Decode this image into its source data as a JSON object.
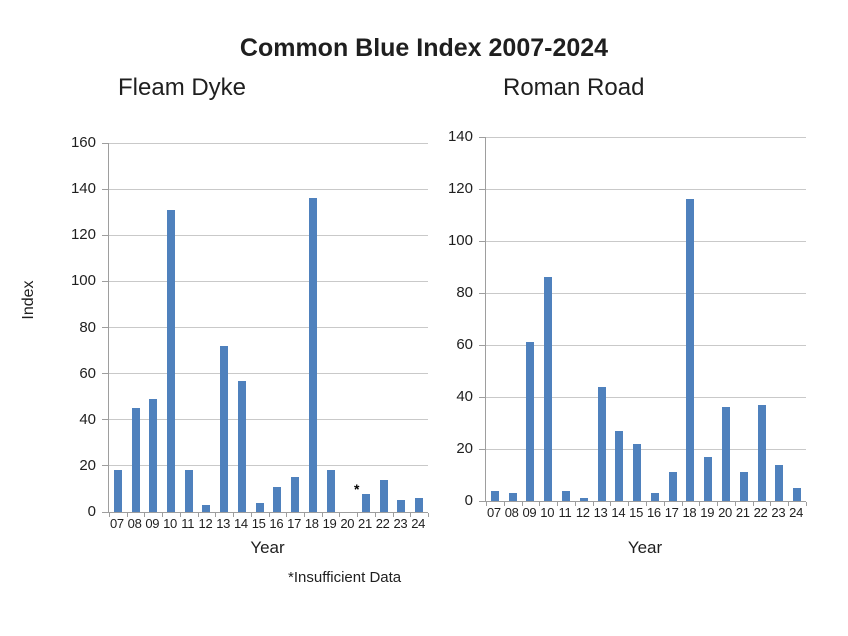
{
  "title": "Common Blue Index 2007-2024",
  "note": "*Insufficient Data",
  "colors": {
    "bar": "#4f81bd",
    "gridline": "#c9c9c9",
    "axis": "#9e9e9e",
    "text": "#1f1f1f"
  },
  "chart_data": [
    {
      "type": "bar",
      "title": "Fleam Dyke",
      "xlabel": "Year",
      "ylabel": "Index",
      "ylim": [
        0,
        160
      ],
      "yticks": [
        0,
        20,
        40,
        60,
        80,
        100,
        120,
        140,
        160
      ],
      "grid": true,
      "categories": [
        "07",
        "08",
        "09",
        "10",
        "11",
        "12",
        "13",
        "14",
        "15",
        "16",
        "17",
        "18",
        "19",
        "20",
        "21",
        "22",
        "23",
        "24"
      ],
      "values": [
        18,
        45,
        49,
        131,
        18,
        3,
        72,
        57,
        4,
        11,
        15,
        136,
        18,
        0,
        8,
        14,
        5,
        6
      ],
      "annotations": [
        {
          "category": "21",
          "text": "*",
          "meaning": "insufficient data"
        }
      ]
    },
    {
      "type": "bar",
      "title": "Roman Road",
      "xlabel": "Year",
      "ylabel": "",
      "ylim": [
        0,
        140
      ],
      "yticks": [
        0,
        20,
        40,
        60,
        80,
        100,
        120,
        140
      ],
      "grid": true,
      "categories": [
        "07",
        "08",
        "09",
        "10",
        "11",
        "12",
        "13",
        "14",
        "15",
        "16",
        "17",
        "18",
        "19",
        "20",
        "21",
        "22",
        "23",
        "24"
      ],
      "values": [
        4,
        3,
        61,
        86,
        4,
        1,
        44,
        27,
        22,
        3,
        11,
        116,
        17,
        36,
        11,
        37,
        14,
        5
      ],
      "annotations": []
    }
  ]
}
